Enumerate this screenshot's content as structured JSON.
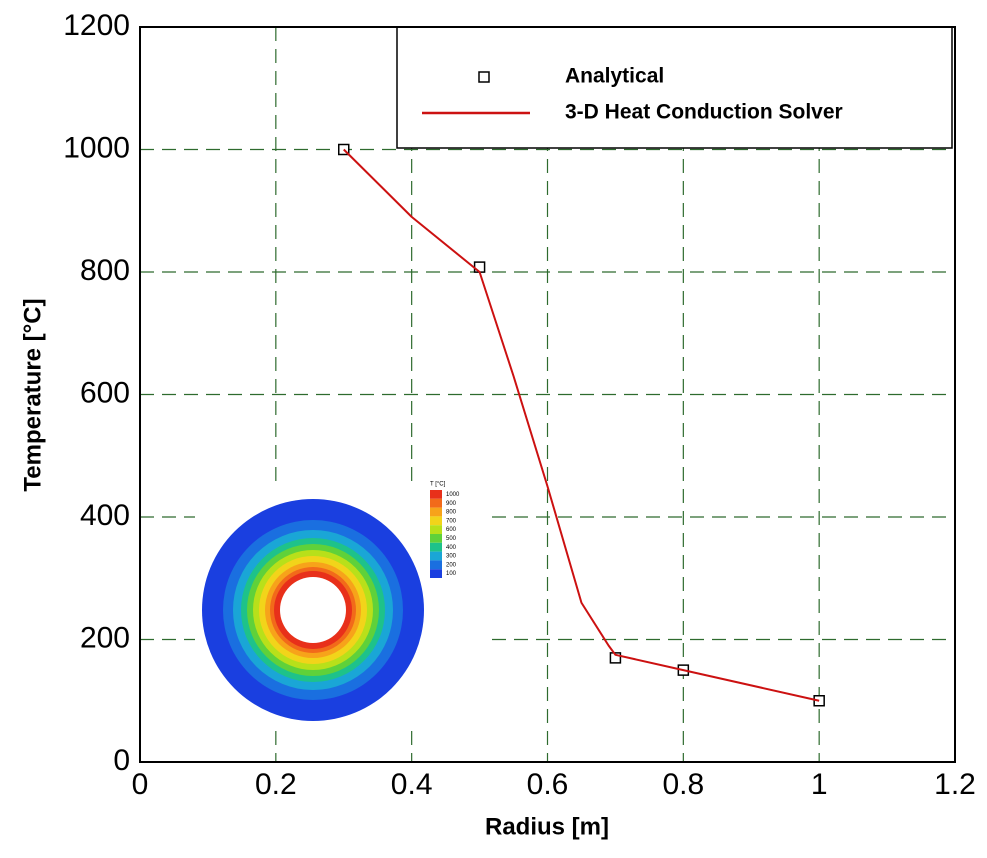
{
  "chart_data": {
    "type": "line",
    "xlabel": "Radius [m]",
    "ylabel": "Temperature [°C]",
    "xlim": [
      0,
      1.2
    ],
    "xticks": [
      0,
      0.2,
      0.4,
      0.6,
      0.8,
      1,
      1.2
    ],
    "ylim": [
      0,
      1200
    ],
    "yticks": [
      0,
      200,
      400,
      600,
      800,
      1000,
      1200
    ],
    "grid": true,
    "grid_color": "#2e6b2e",
    "series": [
      {
        "name": "Analytical",
        "color": "#000000",
        "marker": "square",
        "line": false,
        "x": [
          0.3,
          0.5,
          0.7,
          0.8,
          1
        ],
        "values": [
          1000,
          808,
          170,
          150,
          100
        ]
      },
      {
        "name": "3-D Heat Conduction Solver",
        "color": "#cc1111",
        "marker": null,
        "line": true,
        "x": [
          0.3,
          0.4,
          0.5,
          0.55,
          0.6,
          0.65,
          0.69,
          0.7,
          0.8,
          1
        ],
        "values": [
          1000,
          890,
          800,
          630,
          450,
          260,
          190,
          175,
          150,
          100
        ]
      }
    ],
    "inset": {
      "title": "T [°C]",
      "levels": [
        1000,
        900,
        800,
        700,
        600,
        500,
        400,
        300,
        200,
        100
      ],
      "colors": [
        "#e8301a",
        "#f26a1a",
        "#f7a31a",
        "#f2d41a",
        "#b8e01a",
        "#5fd13a",
        "#1ec28a",
        "#1aa6d6",
        "#1a6fe0",
        "#1a3fe0"
      ]
    }
  }
}
